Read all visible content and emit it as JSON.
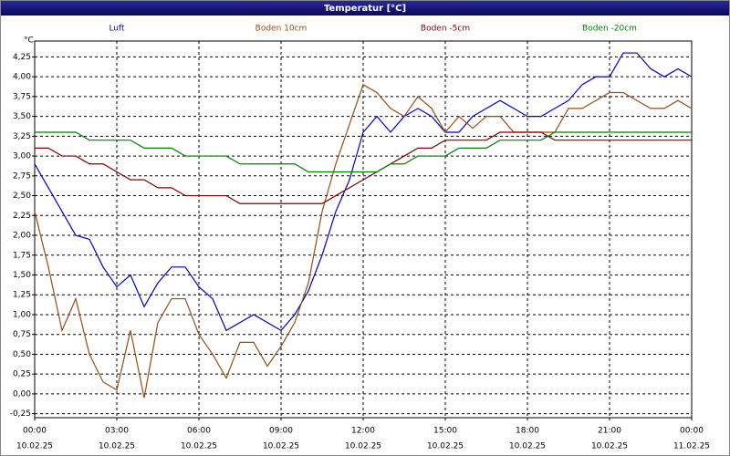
{
  "chart_data": {
    "type": "line",
    "title": "Temperatur [°C]",
    "y_unit": "°C",
    "x": [
      0,
      0.5,
      1,
      1.5,
      2,
      2.5,
      3,
      3.5,
      4,
      4.5,
      5,
      5.5,
      6,
      6.5,
      7,
      7.5,
      8,
      8.5,
      9,
      9.5,
      10,
      10.5,
      11,
      11.5,
      12,
      12.5,
      13,
      13.5,
      14,
      14.5,
      15,
      15.5,
      16,
      16.5,
      17,
      17.5,
      18,
      18.5,
      19,
      19.5,
      20,
      20.5,
      21,
      21.5,
      22,
      22.5,
      23,
      23.5,
      24
    ],
    "xlim": [
      0,
      24
    ],
    "xticks": [
      {
        "value": 0,
        "label": "00:00"
      },
      {
        "value": 3,
        "label": "03:00"
      },
      {
        "value": 6,
        "label": "06:00"
      },
      {
        "value": 9,
        "label": "09:00"
      },
      {
        "value": 12,
        "label": "12:00"
      },
      {
        "value": 15,
        "label": "15:00"
      },
      {
        "value": 18,
        "label": "18:00"
      },
      {
        "value": 21,
        "label": "21:00"
      },
      {
        "value": 24,
        "label": "00:00"
      }
    ],
    "xtick_dates": [
      "10.02.25",
      "10.02.25",
      "10.02.25",
      "10.02.25",
      "10.02.25",
      "10.02.25",
      "10.02.25",
      "10.02.25",
      "11.02.25"
    ],
    "ylim": [
      -0.3,
      4.45
    ],
    "yticks": [
      {
        "value": -0.25,
        "label": "-0,25"
      },
      {
        "value": 0,
        "label": "0,00"
      },
      {
        "value": 0.25,
        "label": "0,25"
      },
      {
        "value": 0.5,
        "label": "0,50"
      },
      {
        "value": 0.75,
        "label": "0,75"
      },
      {
        "value": 1,
        "label": "1,00"
      },
      {
        "value": 1.25,
        "label": "1,25"
      },
      {
        "value": 1.5,
        "label": "1,50"
      },
      {
        "value": 1.75,
        "label": "1,75"
      },
      {
        "value": 2,
        "label": "2,00"
      },
      {
        "value": 2.25,
        "label": "2,25"
      },
      {
        "value": 2.5,
        "label": "2,50"
      },
      {
        "value": 2.75,
        "label": "2,75"
      },
      {
        "value": 3,
        "label": "3,00"
      },
      {
        "value": 3.25,
        "label": "3,25"
      },
      {
        "value": 3.5,
        "label": "3,50"
      },
      {
        "value": 3.75,
        "label": "3,75"
      },
      {
        "value": 4,
        "label": "4,00"
      },
      {
        "value": 4.25,
        "label": "4,25"
      }
    ],
    "grid": true,
    "series": [
      {
        "name": "Luft",
        "color": "#0000cc",
        "values": [
          2.9,
          2.6,
          2.3,
          2.0,
          1.95,
          1.6,
          1.35,
          1.5,
          1.1,
          1.4,
          1.6,
          1.6,
          1.35,
          1.2,
          0.8,
          0.9,
          1.0,
          0.9,
          0.8,
          1.0,
          1.3,
          1.75,
          2.3,
          2.7,
          3.3,
          3.5,
          3.3,
          3.5,
          3.6,
          3.5,
          3.3,
          3.3,
          3.5,
          3.6,
          3.7,
          3.6,
          3.5,
          3.5,
          3.6,
          3.7,
          3.9,
          4.0,
          4.0,
          4.3,
          4.3,
          4.1,
          4.0,
          4.1,
          4.0
        ]
      },
      {
        "name": "Boden 10cm",
        "color": "#9c4a14",
        "values": [
          2.3,
          1.6,
          0.8,
          1.2,
          0.5,
          0.15,
          0.05,
          0.8,
          -0.05,
          0.9,
          1.2,
          1.2,
          0.75,
          0.5,
          0.2,
          0.65,
          0.65,
          0.35,
          0.6,
          0.9,
          1.4,
          2.3,
          2.9,
          3.4,
          3.9,
          3.8,
          3.6,
          3.5,
          3.75,
          3.6,
          3.3,
          3.5,
          3.35,
          3.5,
          3.5,
          3.3,
          3.3,
          3.3,
          3.3,
          3.6,
          3.6,
          3.7,
          3.8,
          3.8,
          3.7,
          3.6,
          3.6,
          3.7,
          3.6
        ]
      },
      {
        "name": "Boden -5cm",
        "color": "#800000",
        "values": [
          3.1,
          3.1,
          3.0,
          3.0,
          2.9,
          2.9,
          2.8,
          2.7,
          2.7,
          2.6,
          2.6,
          2.5,
          2.5,
          2.5,
          2.5,
          2.4,
          2.4,
          2.4,
          2.4,
          2.4,
          2.4,
          2.4,
          2.5,
          2.6,
          2.7,
          2.8,
          2.9,
          3.0,
          3.1,
          3.1,
          3.2,
          3.2,
          3.2,
          3.2,
          3.3,
          3.3,
          3.3,
          3.3,
          3.2,
          3.2,
          3.2,
          3.2,
          3.2,
          3.2,
          3.2,
          3.2,
          3.2,
          3.2,
          3.2
        ]
      },
      {
        "name": "Boden -20cm",
        "color": "#008000",
        "values": [
          3.3,
          3.3,
          3.3,
          3.3,
          3.2,
          3.2,
          3.2,
          3.2,
          3.1,
          3.1,
          3.1,
          3.0,
          3.0,
          3.0,
          3.0,
          2.9,
          2.9,
          2.9,
          2.9,
          2.9,
          2.8,
          2.8,
          2.8,
          2.8,
          2.8,
          2.8,
          2.9,
          2.9,
          3.0,
          3.0,
          3.0,
          3.1,
          3.1,
          3.1,
          3.2,
          3.2,
          3.2,
          3.2,
          3.3,
          3.3,
          3.3,
          3.3,
          3.3,
          3.3,
          3.3,
          3.3,
          3.3,
          3.3,
          3.3
        ]
      }
    ]
  }
}
